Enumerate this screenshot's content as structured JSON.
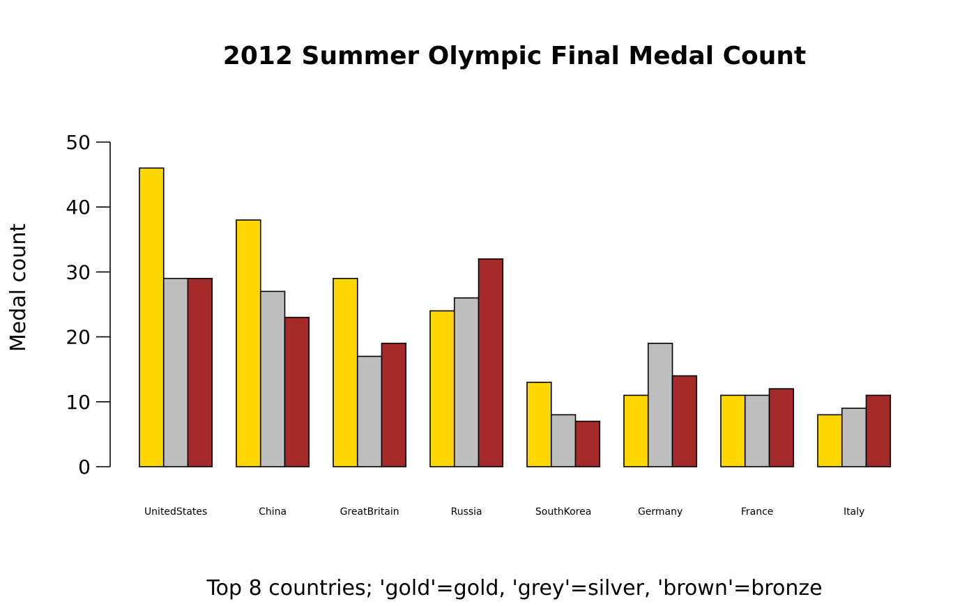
{
  "chart_data": {
    "type": "bar",
    "title": "2012 Summer Olympic Final Medal Count",
    "xlabel": "Top 8 countries; 'gold'=gold, 'grey'=silver, 'brown'=bronze",
    "ylabel": "Medal count",
    "ylim": [
      0,
      50
    ],
    "yticks": [
      0,
      10,
      20,
      30,
      40,
      50
    ],
    "grid": false,
    "legend": "none",
    "categories": [
      "UnitedStates",
      "China",
      "GreatBritain",
      "Russia",
      "SouthKorea",
      "Germany",
      "France",
      "Italy"
    ],
    "series": [
      {
        "color": "#FFD700",
        "values": [
          46,
          38,
          29,
          24,
          13,
          11,
          11,
          8
        ]
      },
      {
        "color": "#BEBEBE",
        "values": [
          29,
          27,
          17,
          26,
          8,
          19,
          11,
          9
        ]
      },
      {
        "color": "#A52A2A",
        "values": [
          29,
          23,
          19,
          32,
          7,
          14,
          12,
          11
        ]
      }
    ]
  }
}
